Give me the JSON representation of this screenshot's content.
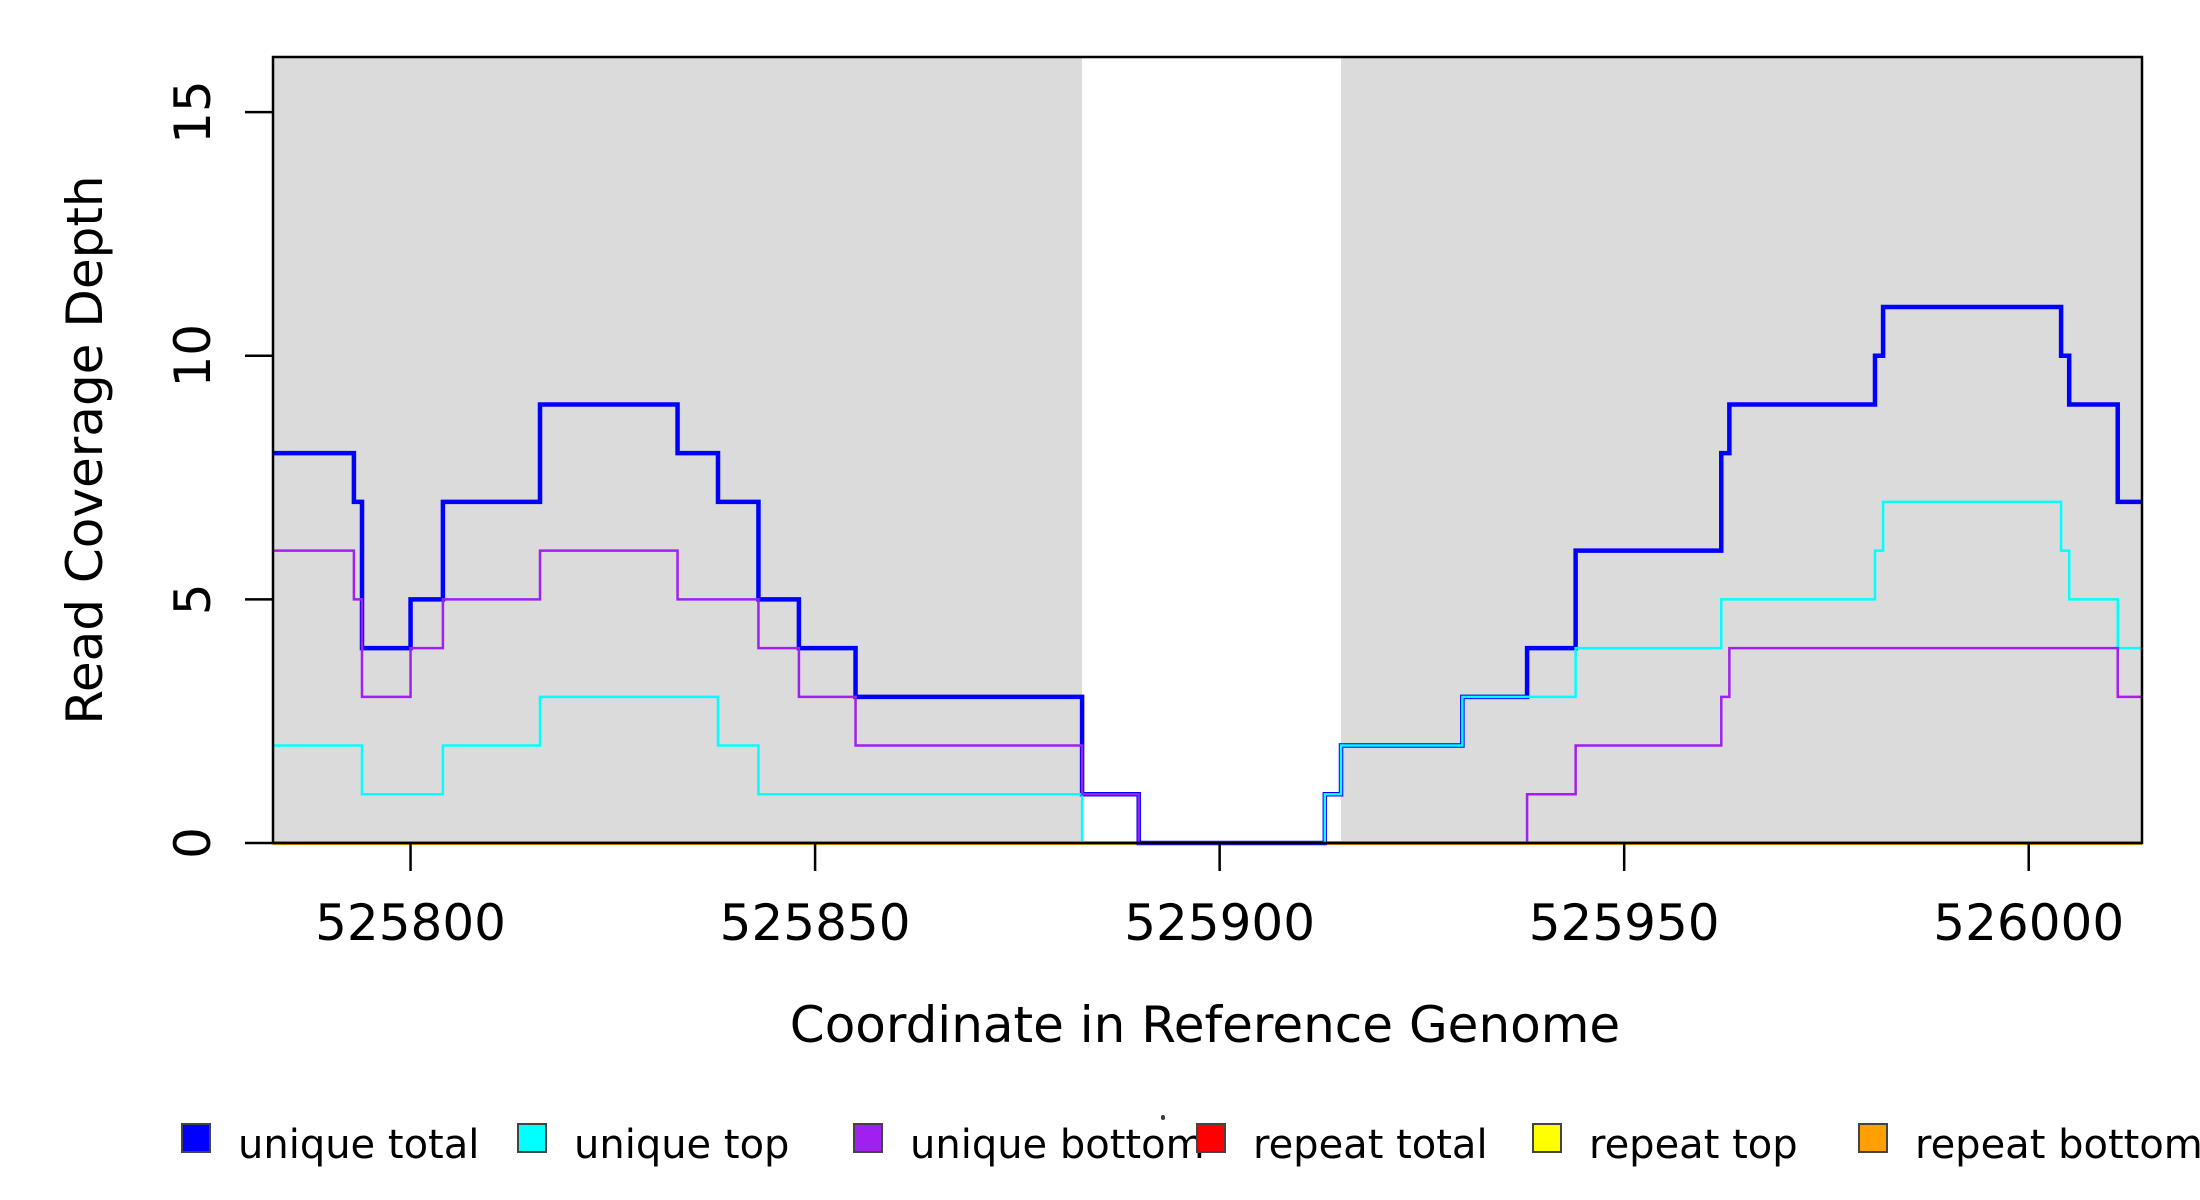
{
  "chart_data": {
    "type": "step-line",
    "title": "",
    "xlabel": "Coordinate in Reference Genome",
    "ylabel": "Read Coverage Depth",
    "xlim": [
      525783,
      526014
    ],
    "ylim": [
      0,
      16.13
    ],
    "x_ticks": [
      525800,
      525850,
      525900,
      525950,
      526000
    ],
    "y_ticks": [
      0,
      5,
      10,
      15
    ],
    "grid": false,
    "legend_position": "bottom",
    "shade_color": "#DBDBDB",
    "axis_color": "#000000",
    "shaded_regions": [
      {
        "from": 525783,
        "to": 525883
      },
      {
        "from": 525915,
        "to": 526014
      }
    ],
    "series": [
      {
        "name": "unique total",
        "color": "#0000FF",
        "line_width": 4.5,
        "layer": 4,
        "points": [
          [
            525783,
            8
          ],
          [
            525793,
            7
          ],
          [
            525794,
            4
          ],
          [
            525800,
            5
          ],
          [
            525804,
            7
          ],
          [
            525816,
            9
          ],
          [
            525833,
            8
          ],
          [
            525838,
            7
          ],
          [
            525843,
            5
          ],
          [
            525848,
            4
          ],
          [
            525855,
            3
          ],
          [
            525883,
            1
          ],
          [
            525890,
            0
          ],
          [
            525913,
            1
          ],
          [
            525915,
            2
          ],
          [
            525930,
            3
          ],
          [
            525938,
            4
          ],
          [
            525944,
            6
          ],
          [
            525962,
            8
          ],
          [
            525963,
            9
          ],
          [
            525981,
            10
          ],
          [
            525982,
            11
          ],
          [
            526004,
            10
          ],
          [
            526005,
            9
          ],
          [
            526011,
            7
          ]
        ]
      },
      {
        "name": "unique top",
        "color": "#00FFFF",
        "line_width": 2.5,
        "layer": 5,
        "points": [
          [
            525783,
            2
          ],
          [
            525794,
            1
          ],
          [
            525804,
            2
          ],
          [
            525816,
            3
          ],
          [
            525838,
            2
          ],
          [
            525843,
            1
          ],
          [
            525883,
            0
          ],
          [
            525913,
            1
          ],
          [
            525915,
            2
          ],
          [
            525930,
            3
          ],
          [
            525944,
            4
          ],
          [
            525962,
            5
          ],
          [
            525981,
            6
          ],
          [
            525982,
            7
          ],
          [
            526004,
            6
          ],
          [
            526005,
            5
          ],
          [
            526011,
            4
          ]
        ]
      },
      {
        "name": "unique bottom",
        "color": "#A020F0",
        "line_width": 2.5,
        "layer": 6,
        "points": [
          [
            525783,
            6
          ],
          [
            525793,
            5
          ],
          [
            525794,
            3
          ],
          [
            525800,
            4
          ],
          [
            525804,
            5
          ],
          [
            525816,
            6
          ],
          [
            525833,
            5
          ],
          [
            525843,
            4
          ],
          [
            525848,
            3
          ],
          [
            525855,
            2
          ],
          [
            525883,
            1
          ],
          [
            525890,
            0
          ],
          [
            525938,
            1
          ],
          [
            525944,
            2
          ],
          [
            525962,
            3
          ],
          [
            525963,
            4
          ],
          [
            526011,
            3
          ]
        ]
      },
      {
        "name": "repeat total",
        "color": "#FF0000",
        "line_width": 3,
        "layer": 1,
        "points": [
          [
            525783,
            0
          ]
        ]
      },
      {
        "name": "repeat top",
        "color": "#FFFF00",
        "line_width": 3,
        "layer": 2,
        "points": [
          [
            525783,
            0
          ]
        ]
      },
      {
        "name": "repeat bottom",
        "color": "#FFA000",
        "line_width": 4,
        "layer": 3,
        "points": [
          [
            525783,
            0
          ]
        ]
      }
    ],
    "legend": {
      "items": [
        {
          "label": "unique total",
          "color": "#0000FF"
        },
        {
          "label": "unique top",
          "color": "#00FFFF"
        },
        {
          "label": "unique bottom",
          "color": "#A020F0"
        },
        {
          "label": "repeat total",
          "color": "#FF0000"
        },
        {
          "label": "repeat top",
          "color": "#FFFF00"
        },
        {
          "label": "repeat bottom",
          "color": "#FFA000"
        }
      ]
    }
  }
}
